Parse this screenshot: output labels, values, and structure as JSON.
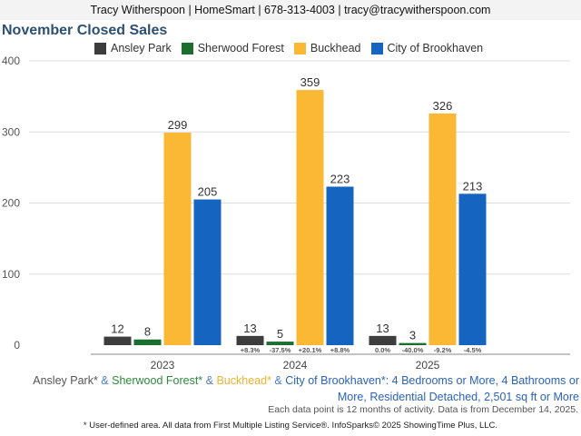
{
  "header": {
    "contact": "Tracy Witherspoon | HomeSmart | 678-313-4003 | tracy@tracywitherspoon.com"
  },
  "chart_data": {
    "type": "bar",
    "title": "November Closed Sales",
    "categories": [
      "2023",
      "2024",
      "2025"
    ],
    "series": [
      {
        "name": "Ansley Park",
        "color": "#3d3d3d",
        "values": [
          12,
          13,
          13
        ],
        "changes": [
          null,
          "+8.3%",
          "0.0%"
        ]
      },
      {
        "name": "Sherwood Forest",
        "color": "#1b6e2e",
        "values": [
          8,
          5,
          3
        ],
        "changes": [
          null,
          "-37.5%",
          "-40.0%"
        ]
      },
      {
        "name": "Buckhead",
        "color": "#fbb834",
        "values": [
          299,
          359,
          326
        ],
        "changes": [
          null,
          "+20.1%",
          "-9.2%"
        ]
      },
      {
        "name": "City of Brookhaven",
        "color": "#1565c0",
        "values": [
          205,
          223,
          213
        ],
        "changes": [
          null,
          "+8.8%",
          "-4.5%"
        ]
      }
    ],
    "ylim": [
      0,
      400
    ],
    "yticks": [
      0,
      100,
      200,
      300,
      400
    ],
    "grid": true,
    "legend": "top"
  },
  "footer": {
    "areas": [
      {
        "text": "Ansley Park*",
        "color": "#555555"
      },
      {
        "text": " & ",
        "color": "#4b7ec2"
      },
      {
        "text": "Sherwood Forest*",
        "color": "#2e8a3e"
      },
      {
        "text": " & ",
        "color": "#4b7ec2"
      },
      {
        "text": "Buckhead*",
        "color": "#f0b22e"
      },
      {
        "text": " & ",
        "color": "#4b7ec2"
      },
      {
        "text": "City of Brookhaven*",
        "color": "#2a63b8"
      }
    ],
    "criteria": ": 4 Bedrooms or More, 4 Bathrooms or More, Residential Detached, 2,501 sq ft or More",
    "note": "Each data point is 12 months of activity. Data is from December 14, 2025.",
    "credit": "* User-defined area. All data from First Multiple Listing Service®. InfoSparks© 2025 ShowingTime Plus, LLC."
  }
}
